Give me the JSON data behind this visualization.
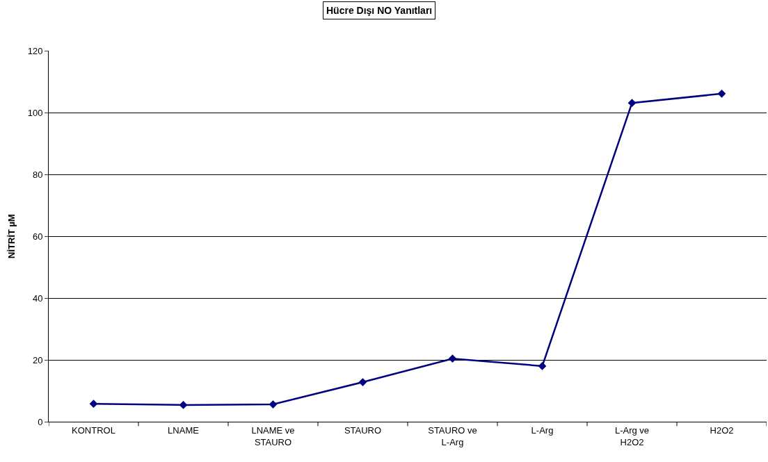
{
  "chart_data": {
    "type": "line",
    "title": "Hücre Dışı NO Yanıtları",
    "ylabel": "NİTRİT µM",
    "categories": [
      "KONTROL",
      "LNAME",
      "LNAME ve STAURO",
      "STAURO",
      "STAURO ve L-Arg",
      "L-Arg",
      "L-Arg ve H2O2",
      "H2O2"
    ],
    "series": [
      {
        "color": "#000080",
        "values": [
          5.8,
          5.4,
          5.6,
          12.8,
          20.4,
          18.0,
          103.1,
          106.1
        ]
      }
    ],
    "ylim": [
      0,
      120
    ],
    "yticks": [
      0,
      20,
      40,
      60,
      80,
      100,
      120
    ],
    "grid": "y",
    "marker": "diamond",
    "line_style": "solid"
  }
}
